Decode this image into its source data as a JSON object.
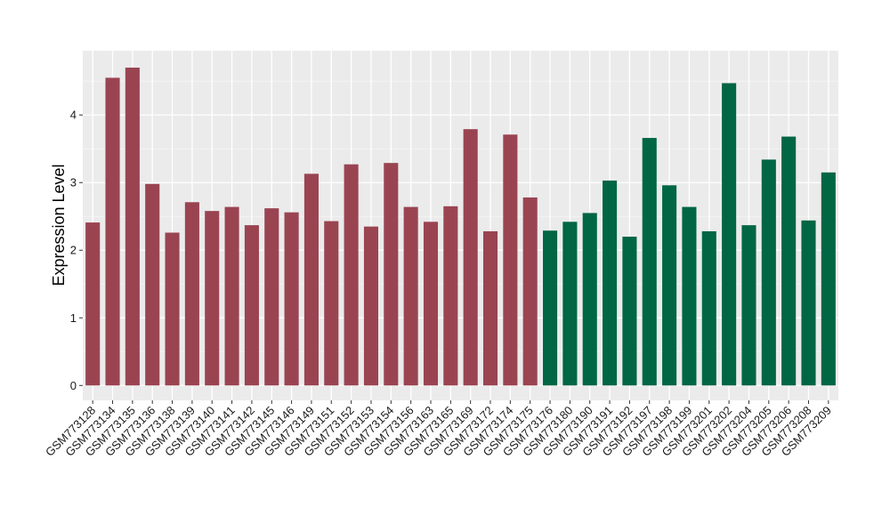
{
  "chart_data": {
    "type": "bar",
    "title": "",
    "xlabel": "",
    "ylabel": "Expression Level",
    "ylim": [
      -0.22,
      4.95
    ],
    "yticks": [
      0,
      1,
      2,
      3,
      4
    ],
    "grid": true,
    "background": "#ebebeb",
    "categories": [
      "GSM773128",
      "GSM773134",
      "GSM773135",
      "GSM773136",
      "GSM773138",
      "GSM773139",
      "GSM773140",
      "GSM773141",
      "GSM773142",
      "GSM773145",
      "GSM773146",
      "GSM773149",
      "GSM773151",
      "GSM773152",
      "GSM773153",
      "GSM773154",
      "GSM773156",
      "GSM773163",
      "GSM773165",
      "GSM773169",
      "GSM773172",
      "GSM773174",
      "GSM773175",
      "GSM773176",
      "GSM773180",
      "GSM773190",
      "GSM773191",
      "GSM773192",
      "GSM773197",
      "GSM773198",
      "GSM773199",
      "GSM773201",
      "GSM773202",
      "GSM773204",
      "GSM773205",
      "GSM773206",
      "GSM773208",
      "GSM773209"
    ],
    "values": [
      2.41,
      4.55,
      4.7,
      2.98,
      2.26,
      2.71,
      2.58,
      2.64,
      2.37,
      2.62,
      2.56,
      3.13,
      2.43,
      3.27,
      2.35,
      3.29,
      2.64,
      2.42,
      2.65,
      3.79,
      2.28,
      3.71,
      2.78,
      2.29,
      2.42,
      2.55,
      3.03,
      2.2,
      3.66,
      2.96,
      2.64,
      2.28,
      4.47,
      2.37,
      3.34,
      3.68,
      2.44,
      3.15
    ],
    "groups": [
      {
        "count": 23,
        "color": "#9a4452"
      },
      {
        "count": 15,
        "color": "#006644"
      }
    ]
  }
}
